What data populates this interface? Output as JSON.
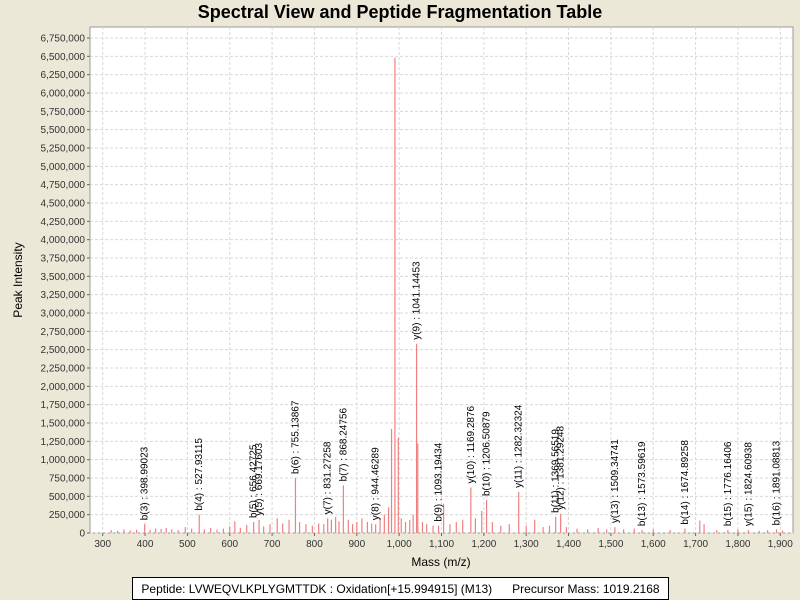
{
  "chart_data": {
    "type": "bar",
    "title": "Spectral View and Peptide Fragmentation Table",
    "xlabel": "Mass (m/z)",
    "ylabel": "Peak Intensity",
    "xlim": [
      270,
      1930
    ],
    "ylim": [
      0,
      6900000
    ],
    "xticks": [
      300,
      400,
      500,
      600,
      700,
      800,
      900,
      1000,
      1100,
      1200,
      1300,
      1400,
      1500,
      1600,
      1700,
      1800,
      1900
    ],
    "xtick_labels": [
      "300",
      "400",
      "500",
      "600",
      "700",
      "800",
      "900",
      "1,000",
      "1,100",
      "1,200",
      "1,300",
      "1,400",
      "1,500",
      "1,600",
      "1,700",
      "1,800",
      "1,900"
    ],
    "yticks": [
      0,
      250000,
      500000,
      750000,
      1000000,
      1250000,
      1500000,
      1750000,
      2000000,
      2250000,
      2500000,
      2750000,
      3000000,
      3250000,
      3500000,
      3750000,
      4000000,
      4250000,
      4500000,
      4750000,
      5000000,
      5250000,
      5500000,
      5750000,
      6000000,
      6250000,
      6500000,
      6750000
    ],
    "ytick_labels": [
      "0",
      "250,000",
      "500,000",
      "750,000",
      "1,000,000",
      "1,250,000",
      "1,500,000",
      "1,750,000",
      "2,000,000",
      "2,250,000",
      "2,500,000",
      "2,750,000",
      "3,000,000",
      "3,250,000",
      "3,500,000",
      "3,750,000",
      "4,000,000",
      "4,250,000",
      "4,500,000",
      "4,750,000",
      "5,000,000",
      "5,250,000",
      "5,500,000",
      "5,750,000",
      "6,000,000",
      "6,250,000",
      "6,500,000",
      "6,750,000"
    ],
    "grid": true,
    "bar_color": "#f08080",
    "peaks": [
      {
        "mz": 320,
        "i": 40000
      },
      {
        "mz": 335,
        "i": 30000
      },
      {
        "mz": 350,
        "i": 50000
      },
      {
        "mz": 365,
        "i": 35000
      },
      {
        "mz": 380,
        "i": 45000
      },
      {
        "mz": 398.99,
        "i": 120000
      },
      {
        "mz": 412,
        "i": 40000
      },
      {
        "mz": 425,
        "i": 60000
      },
      {
        "mz": 438,
        "i": 55000
      },
      {
        "mz": 450,
        "i": 70000
      },
      {
        "mz": 463,
        "i": 50000
      },
      {
        "mz": 478,
        "i": 40000
      },
      {
        "mz": 495,
        "i": 80000
      },
      {
        "mz": 510,
        "i": 60000
      },
      {
        "mz": 527.93,
        "i": 250000
      },
      {
        "mz": 540,
        "i": 50000
      },
      {
        "mz": 555,
        "i": 70000
      },
      {
        "mz": 570,
        "i": 45000
      },
      {
        "mz": 585,
        "i": 60000
      },
      {
        "mz": 600,
        "i": 90000
      },
      {
        "mz": 612,
        "i": 160000
      },
      {
        "mz": 625,
        "i": 70000
      },
      {
        "mz": 640,
        "i": 110000
      },
      {
        "mz": 656.43,
        "i": 150000
      },
      {
        "mz": 669.18,
        "i": 180000
      },
      {
        "mz": 680,
        "i": 90000
      },
      {
        "mz": 695,
        "i": 120000
      },
      {
        "mz": 712,
        "i": 200000
      },
      {
        "mz": 725,
        "i": 130000
      },
      {
        "mz": 740,
        "i": 180000
      },
      {
        "mz": 755.14,
        "i": 750000
      },
      {
        "mz": 765,
        "i": 150000
      },
      {
        "mz": 780,
        "i": 120000
      },
      {
        "mz": 795,
        "i": 100000
      },
      {
        "mz": 810,
        "i": 130000
      },
      {
        "mz": 822,
        "i": 120000
      },
      {
        "mz": 831.27,
        "i": 200000
      },
      {
        "mz": 840,
        "i": 180000
      },
      {
        "mz": 850,
        "i": 220000
      },
      {
        "mz": 858,
        "i": 160000
      },
      {
        "mz": 868.25,
        "i": 650000
      },
      {
        "mz": 880,
        "i": 180000
      },
      {
        "mz": 890,
        "i": 120000
      },
      {
        "mz": 900,
        "i": 150000
      },
      {
        "mz": 912,
        "i": 200000
      },
      {
        "mz": 925,
        "i": 150000
      },
      {
        "mz": 935,
        "i": 130000
      },
      {
        "mz": 944.46,
        "i": 120000
      },
      {
        "mz": 955,
        "i": 200000
      },
      {
        "mz": 965,
        "i": 250000
      },
      {
        "mz": 975,
        "i": 350000
      },
      {
        "mz": 982,
        "i": 1420000
      },
      {
        "mz": 990,
        "i": 6480000
      },
      {
        "mz": 998,
        "i": 1300000
      },
      {
        "mz": 1005,
        "i": 200000
      },
      {
        "mz": 1015,
        "i": 150000
      },
      {
        "mz": 1025,
        "i": 180000
      },
      {
        "mz": 1033,
        "i": 250000
      },
      {
        "mz": 1041.14,
        "i": 2580000
      },
      {
        "mz": 1044,
        "i": 1220000
      },
      {
        "mz": 1055,
        "i": 150000
      },
      {
        "mz": 1065,
        "i": 120000
      },
      {
        "mz": 1080,
        "i": 100000
      },
      {
        "mz": 1093.19,
        "i": 100000
      },
      {
        "mz": 1105,
        "i": 400000
      },
      {
        "mz": 1120,
        "i": 120000
      },
      {
        "mz": 1135,
        "i": 150000
      },
      {
        "mz": 1150,
        "i": 180000
      },
      {
        "mz": 1169.29,
        "i": 620000
      },
      {
        "mz": 1180,
        "i": 200000
      },
      {
        "mz": 1195,
        "i": 300000
      },
      {
        "mz": 1206.51,
        "i": 450000
      },
      {
        "mz": 1220,
        "i": 150000
      },
      {
        "mz": 1240,
        "i": 100000
      },
      {
        "mz": 1260,
        "i": 120000
      },
      {
        "mz": 1282.32,
        "i": 560000
      },
      {
        "mz": 1300,
        "i": 100000
      },
      {
        "mz": 1320,
        "i": 180000
      },
      {
        "mz": 1340,
        "i": 80000
      },
      {
        "mz": 1355,
        "i": 100000
      },
      {
        "mz": 1369.57,
        "i": 220000
      },
      {
        "mz": 1381.29,
        "i": 260000
      },
      {
        "mz": 1395,
        "i": 80000
      },
      {
        "mz": 1420,
        "i": 60000
      },
      {
        "mz": 1445,
        "i": 50000
      },
      {
        "mz": 1470,
        "i": 70000
      },
      {
        "mz": 1490,
        "i": 50000
      },
      {
        "mz": 1509.35,
        "i": 80000
      },
      {
        "mz": 1530,
        "i": 50000
      },
      {
        "mz": 1555,
        "i": 60000
      },
      {
        "mz": 1573.6,
        "i": 40000
      },
      {
        "mz": 1600,
        "i": 50000
      },
      {
        "mz": 1640,
        "i": 40000
      },
      {
        "mz": 1674.89,
        "i": 60000
      },
      {
        "mz": 1710,
        "i": 170000
      },
      {
        "mz": 1720,
        "i": 120000
      },
      {
        "mz": 1750,
        "i": 40000
      },
      {
        "mz": 1776.16,
        "i": 40000
      },
      {
        "mz": 1800,
        "i": 50000
      },
      {
        "mz": 1824.61,
        "i": 40000
      },
      {
        "mz": 1850,
        "i": 30000
      },
      {
        "mz": 1870,
        "i": 40000
      },
      {
        "mz": 1891.09,
        "i": 50000
      },
      {
        "mz": 1905,
        "i": 35000
      }
    ],
    "annotations": [
      {
        "label": "b(3) : 398.99023",
        "mz": 398.99,
        "i": 120000
      },
      {
        "label": "b(4) : 527.93115",
        "mz": 527.93,
        "i": 250000
      },
      {
        "label": "b(5) : 656.42725",
        "mz": 656.43,
        "i": 150000
      },
      {
        "label": "y(5) : 669.17603",
        "mz": 669.18,
        "i": 180000
      },
      {
        "label": "b(6) : 755.13867",
        "mz": 755.14,
        "i": 750000
      },
      {
        "label": "y(7) : 831.27258",
        "mz": 831.27,
        "i": 200000
      },
      {
        "label": "b(7) : 868.24756",
        "mz": 868.25,
        "i": 650000
      },
      {
        "label": "y(8) : 944.46289",
        "mz": 944.46,
        "i": 120000
      },
      {
        "label": "y(9) : 1041.14453",
        "mz": 1041.14,
        "i": 2580000
      },
      {
        "label": "b(9) : 1093.19434",
        "mz": 1093.19,
        "i": 100000
      },
      {
        "label": "y(10) : 1169.2876",
        "mz": 1169.29,
        "i": 620000
      },
      {
        "label": "b(10) : 1206.50879",
        "mz": 1206.51,
        "i": 450000
      },
      {
        "label": "y(11) : 1282.32324",
        "mz": 1282.32,
        "i": 560000
      },
      {
        "label": "b(11) : 1369.56519",
        "mz": 1369.57,
        "i": 220000
      },
      {
        "label": "y(12) : 1381.29248",
        "mz": 1381.29,
        "i": 260000
      },
      {
        "label": "y(13) : 1509.34741",
        "mz": 1509.35,
        "i": 80000
      },
      {
        "label": "b(13) : 1573.59619",
        "mz": 1573.6,
        "i": 40000
      },
      {
        "label": "b(14) : 1674.89258",
        "mz": 1674.89,
        "i": 60000
      },
      {
        "label": "b(15) : 1776.16406",
        "mz": 1776.16,
        "i": 40000
      },
      {
        "label": "y(15) : 1824.60938",
        "mz": 1824.61,
        "i": 40000
      },
      {
        "label": "b(16) : 1891.08813",
        "mz": 1891.09,
        "i": 50000
      }
    ]
  },
  "footer": {
    "peptide": "Peptide: LVWEQVLKPLYGMTTDK : Oxidation[+15.994915] (M13)",
    "precursor": "Precursor Mass: 1019.2168"
  }
}
